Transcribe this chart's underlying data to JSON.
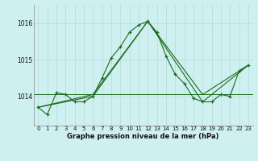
{
  "title": "Graphe pression niveau de la mer (hPa)",
  "bg_color": "#cff0f0",
  "line_color": "#1a6b1a",
  "x_ticks": [
    0,
    1,
    2,
    3,
    4,
    5,
    6,
    7,
    8,
    9,
    10,
    11,
    12,
    13,
    14,
    15,
    16,
    17,
    18,
    19,
    20,
    21,
    22,
    23
  ],
  "ylim": [
    1013.2,
    1016.5
  ],
  "yticks": [
    1014,
    1015,
    1016
  ],
  "series0_x": [
    0,
    1,
    2,
    3,
    4,
    5,
    6,
    7,
    8,
    9,
    10,
    11,
    12,
    13,
    14,
    15,
    16,
    17,
    18,
    19,
    20,
    21,
    22,
    23
  ],
  "series0_y": [
    1013.7,
    1013.5,
    1014.1,
    1014.05,
    1013.85,
    1013.85,
    1014.0,
    1014.5,
    1015.05,
    1015.35,
    1015.75,
    1015.95,
    1016.05,
    1015.75,
    1015.1,
    1014.6,
    1014.35,
    1013.95,
    1013.85,
    1013.85,
    1014.05,
    1014.0,
    1014.7,
    1014.85
  ],
  "series1_x": [
    0,
    6,
    12,
    18,
    23
  ],
  "series1_y": [
    1013.7,
    1014.0,
    1016.05,
    1013.85,
    1014.85
  ],
  "series2_x": [
    0,
    6,
    12,
    18,
    23
  ],
  "series2_y": [
    1013.7,
    1014.05,
    1016.05,
    1014.05,
    1014.85
  ],
  "flat_line_y": 1014.05,
  "grid_color": "#b8d8d8",
  "tick_fontsize": 5.0,
  "label_fontsize": 6.0
}
